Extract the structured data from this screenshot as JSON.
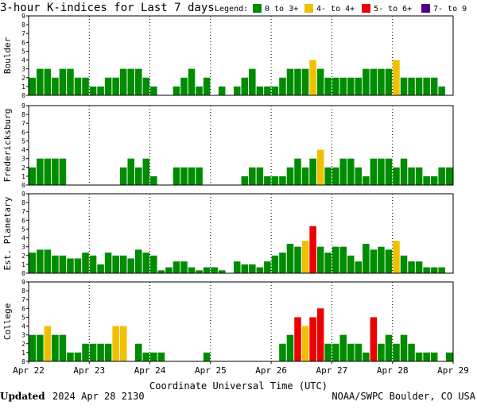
{
  "chart_data": {
    "type": "bar",
    "title": "3-hour K-indices for Last 7 days",
    "legend": {
      "label": "Legend:",
      "entries": [
        {
          "label": "0 to 3+",
          "color": "#008c00"
        },
        {
          "label": "4- to 4+",
          "color": "#f0c000"
        },
        {
          "label": "5- to 6+",
          "color": "#ee0000"
        },
        {
          "label": "7- to 9",
          "color": "#50008c"
        }
      ]
    },
    "xlabel": "Coordinate Universal Time (UTC)",
    "x_ticks": [
      "Apr 22",
      "Apr 23",
      "Apr 24",
      "Apr 25",
      "Apr 26",
      "Apr 27",
      "Apr 28",
      "Apr 29"
    ],
    "y_ticks": [
      "0",
      "1",
      "2",
      "3",
      "4",
      "5",
      "6",
      "7",
      "8",
      "9"
    ],
    "ylim": [
      0,
      9
    ],
    "panels": [
      {
        "name": "Boulder",
        "values": [
          2,
          3,
          3,
          2,
          3,
          3,
          2,
          2,
          1,
          1,
          2,
          2,
          3,
          3,
          3,
          2,
          1,
          0,
          0,
          1,
          2,
          3,
          1,
          2,
          0,
          1,
          0,
          1,
          2,
          3,
          1,
          1,
          1,
          2,
          3,
          3,
          3,
          4,
          3,
          2,
          2,
          2,
          2,
          2,
          3,
          3,
          3,
          3,
          4,
          2,
          2,
          2,
          2,
          2,
          1,
          0
        ]
      },
      {
        "name": "Fredericksburg",
        "values": [
          2,
          3,
          3,
          3,
          3,
          0,
          0,
          0,
          0,
          0,
          0,
          0,
          2,
          3,
          2,
          3,
          1,
          0,
          0,
          2,
          2,
          2,
          2,
          0,
          0,
          0,
          0,
          0,
          1,
          2,
          2,
          1,
          1,
          1,
          2,
          3,
          2,
          3,
          4,
          2,
          2,
          3,
          3,
          2,
          1,
          3,
          3,
          3,
          2,
          3,
          2,
          2,
          1,
          1,
          2,
          2,
          0
        ]
      },
      {
        "name": "Est. Planetary",
        "values": [
          2.33,
          2.67,
          2.67,
          2,
          2,
          1.67,
          1.67,
          2.33,
          2,
          1,
          2.33,
          2,
          2,
          1.67,
          2.67,
          2.33,
          2,
          0.33,
          0.67,
          1.33,
          1.33,
          0.67,
          0.33,
          0.67,
          0.67,
          0.33,
          0,
          1.33,
          1,
          1,
          0.67,
          1.33,
          2,
          2.33,
          3.33,
          3,
          3.67,
          5.33,
          3,
          2.33,
          3,
          3,
          2,
          1.33,
          3.33,
          2.67,
          3,
          2.67,
          3.67,
          2,
          1.33,
          1.33,
          0.67,
          0.67,
          0.67
        ]
      },
      {
        "name": "College",
        "values": [
          3,
          3,
          4,
          3,
          3,
          1,
          1,
          2,
          2,
          2,
          2,
          4,
          4,
          0,
          2,
          1,
          1,
          1,
          0,
          0,
          0,
          0,
          0,
          1,
          0,
          0,
          0,
          0,
          0,
          0,
          0,
          0,
          0,
          2,
          3,
          5,
          4,
          5,
          6,
          2,
          2,
          3,
          2,
          2,
          1,
          5,
          2,
          3,
          2,
          3,
          2,
          1,
          1,
          1,
          0,
          1,
          0
        ]
      }
    ]
  },
  "footer": {
    "updated_label": "Updated",
    "updated_value": "2024 Apr 28 2130",
    "credit": "NOAA/SWPC Boulder, CO USA"
  }
}
